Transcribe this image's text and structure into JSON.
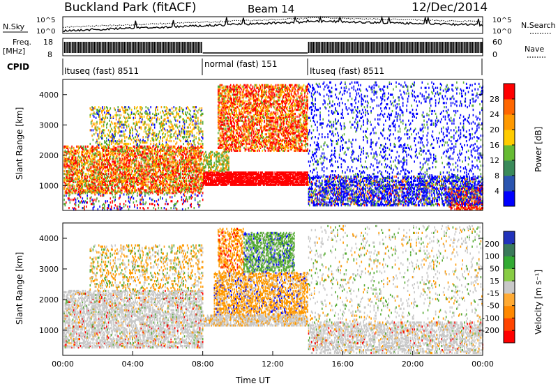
{
  "header": {
    "title": "Buckland Park (fitACF)",
    "beam": "Beam 14",
    "date": "12/Dec/2014"
  },
  "noise_panel": {
    "left_label": "N.Sky",
    "right_label": "N.Search",
    "left_ticks": [
      "10^5",
      "10^0"
    ],
    "right_ticks": [
      "10^5",
      "10^0"
    ]
  },
  "freq_panel": {
    "left_label_1": "Freq.",
    "left_label_2": "[MHz]",
    "left_ticks": [
      "18",
      "8"
    ],
    "right_label": "Nave",
    "right_ticks": [
      "60",
      "0"
    ]
  },
  "cpid": {
    "label": "CPID",
    "segments": [
      {
        "label": "Ituseq (fast) 8511",
        "start_h": 0,
        "end_h": 8
      },
      {
        "label": "normal (fast) 151",
        "start_h": 8,
        "end_h": 14
      },
      {
        "label": "Ituseq (fast) 8511",
        "start_h": 14,
        "end_h": 24
      }
    ]
  },
  "chart_data": [
    {
      "type": "heatmap",
      "title": "",
      "ylabel": "Slant Range [km]",
      "xlabel": "",
      "xlim": [
        0,
        24
      ],
      "ylim": [
        180,
        4500
      ],
      "yticks": [
        "1000",
        "2000",
        "3000",
        "4000"
      ],
      "colorbar": {
        "label": "Power [dB]",
        "ticks": [
          "4",
          "8",
          "12",
          "16",
          "20",
          "24",
          "28"
        ],
        "colors": [
          "#0000ff",
          "#2a55b0",
          "#3a8a5a",
          "#66bb33",
          "#ffcc00",
          "#ff9900",
          "#ff6600",
          "#ff0000"
        ]
      },
      "regions": [
        {
          "x": [
            0.5,
            8
          ],
          "range": [
            700,
            2300
          ],
          "level": "orange-red"
        },
        {
          "x": [
            8,
            14
          ],
          "range": [
            1100,
            1400
          ],
          "level": "red"
        },
        {
          "x": [
            9,
            13
          ],
          "range": [
            2200,
            4200
          ],
          "level": "orange-red"
        },
        {
          "x": [
            14,
            24
          ],
          "range": [
            400,
            1300
          ],
          "level": "blue"
        }
      ]
    },
    {
      "type": "heatmap",
      "title": "",
      "ylabel": "Slant Range [km]",
      "xlabel": "Time UT",
      "xlim": [
        0,
        24
      ],
      "ylim": [
        180,
        4500
      ],
      "yticks": [
        "1000",
        "2000",
        "3000",
        "4000"
      ],
      "xticks": [
        "00:00",
        "04:00",
        "08:00",
        "12:00",
        "16:00",
        "20:00",
        "00:00"
      ],
      "colorbar": {
        "label": "Velocity [m s⁻¹]",
        "ticks": [
          "200",
          "100",
          "50",
          "15",
          "-15",
          "-50",
          "-100",
          "-200"
        ],
        "colors": [
          "#2233bb",
          "#3a7a5a",
          "#33aa33",
          "#88cc44",
          "#c8c8c8",
          "#ffaa33",
          "#ff8800",
          "#ff4400",
          "#ff0000"
        ]
      },
      "regions": [
        {
          "x": [
            0.3,
            8
          ],
          "range": [
            500,
            2200
          ],
          "level": "grey"
        },
        {
          "x": [
            8.5,
            13.5
          ],
          "range": [
            1100,
            2800
          ],
          "level": "orange"
        },
        {
          "x": [
            10.5,
            13
          ],
          "range": [
            2800,
            4000
          ],
          "level": "green"
        },
        {
          "x": [
            14,
            24
          ],
          "range": [
            200,
            1200
          ],
          "level": "grey"
        }
      ]
    }
  ],
  "colors": {
    "red": "#ff0000",
    "orange": "#ff9900",
    "yellow": "#ffcc00",
    "green": "#55aa33",
    "blue": "#0000ff",
    "grey": "#c8c8c8"
  }
}
